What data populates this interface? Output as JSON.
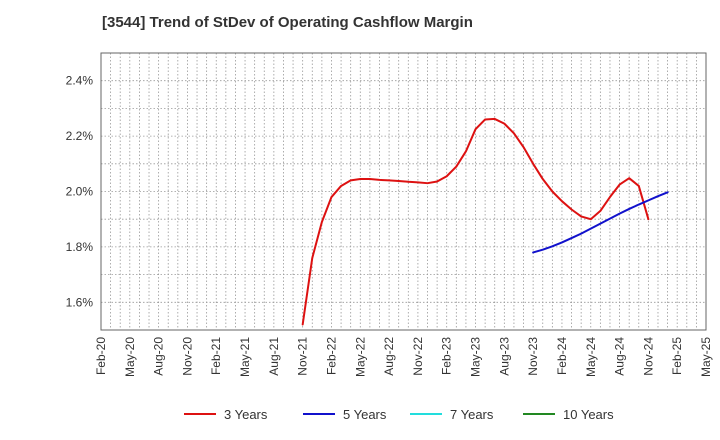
{
  "title": "[3544]  Trend of StDev of Operating Cashflow Margin",
  "chart_data": {
    "type": "line",
    "title": "[3544]  Trend of StDev of Operating Cashflow Margin",
    "xlabel": "",
    "ylabel": "",
    "x_ticks": [
      "Feb-20",
      "May-20",
      "Aug-20",
      "Nov-20",
      "Feb-21",
      "May-21",
      "Aug-21",
      "Nov-21",
      "Feb-22",
      "May-22",
      "Aug-22",
      "Nov-22",
      "Feb-23",
      "May-23",
      "Aug-23",
      "Nov-23",
      "Feb-24",
      "May-24",
      "Aug-24",
      "Nov-24",
      "Feb-25",
      "May-25"
    ],
    "y_ticks": [
      "1.6%",
      "1.8%",
      "2.0%",
      "2.2%",
      "2.4%"
    ],
    "y_tick_values": [
      1.6,
      1.8,
      2.0,
      2.2,
      2.4
    ],
    "ylim": [
      1.5,
      2.5
    ],
    "y_unit": "%",
    "grid": true,
    "legend_position": "bottom",
    "series": [
      {
        "name": "3 Years",
        "color": "#dd1111",
        "points": [
          [
            "Nov-21",
            1.52
          ],
          [
            "Dec-21",
            1.76
          ],
          [
            "Jan-22",
            1.89
          ],
          [
            "Feb-22",
            1.98
          ],
          [
            "Mar-22",
            2.02
          ],
          [
            "Apr-22",
            2.04
          ],
          [
            "May-22",
            2.045
          ],
          [
            "Jun-22",
            2.045
          ],
          [
            "Jul-22",
            2.042
          ],
          [
            "Aug-22",
            2.04
          ],
          [
            "Sep-22",
            2.038
          ],
          [
            "Oct-22",
            2.035
          ],
          [
            "Nov-22",
            2.033
          ],
          [
            "Dec-22",
            2.03
          ],
          [
            "Jan-23",
            2.036
          ],
          [
            "Feb-23",
            2.055
          ],
          [
            "Mar-23",
            2.09
          ],
          [
            "Apr-23",
            2.145
          ],
          [
            "May-23",
            2.225
          ],
          [
            "Jun-23",
            2.26
          ],
          [
            "Jul-23",
            2.262
          ],
          [
            "Aug-23",
            2.245
          ],
          [
            "Sep-23",
            2.21
          ],
          [
            "Oct-23",
            2.16
          ],
          [
            "Nov-23",
            2.1
          ],
          [
            "Dec-23",
            2.045
          ],
          [
            "Jan-24",
            2.0
          ],
          [
            "Feb-24",
            1.965
          ],
          [
            "Mar-24",
            1.935
          ],
          [
            "Apr-24",
            1.91
          ],
          [
            "May-24",
            1.9
          ],
          [
            "Jun-24",
            1.93
          ],
          [
            "Jul-24",
            1.98
          ],
          [
            "Aug-24",
            2.025
          ],
          [
            "Sep-24",
            2.048
          ],
          [
            "Oct-24",
            2.02
          ],
          [
            "Nov-24",
            1.9
          ]
        ]
      },
      {
        "name": "5 Years",
        "color": "#1111cc",
        "points": [
          [
            "Nov-23",
            1.78
          ],
          [
            "Dec-23",
            1.79
          ],
          [
            "Jan-24",
            1.802
          ],
          [
            "Feb-24",
            1.816
          ],
          [
            "Mar-24",
            1.832
          ],
          [
            "Apr-24",
            1.848
          ],
          [
            "May-24",
            1.866
          ],
          [
            "Jun-24",
            1.884
          ],
          [
            "Jul-24",
            1.902
          ],
          [
            "Aug-24",
            1.92
          ],
          [
            "Sep-24",
            1.937
          ],
          [
            "Oct-24",
            1.953
          ],
          [
            "Nov-24",
            1.968
          ],
          [
            "Dec-24",
            1.983
          ],
          [
            "Jan-25",
            1.997
          ]
        ]
      },
      {
        "name": "7 Years",
        "color": "#22dddd",
        "points": []
      },
      {
        "name": "10 Years",
        "color": "#228822",
        "points": []
      }
    ]
  }
}
